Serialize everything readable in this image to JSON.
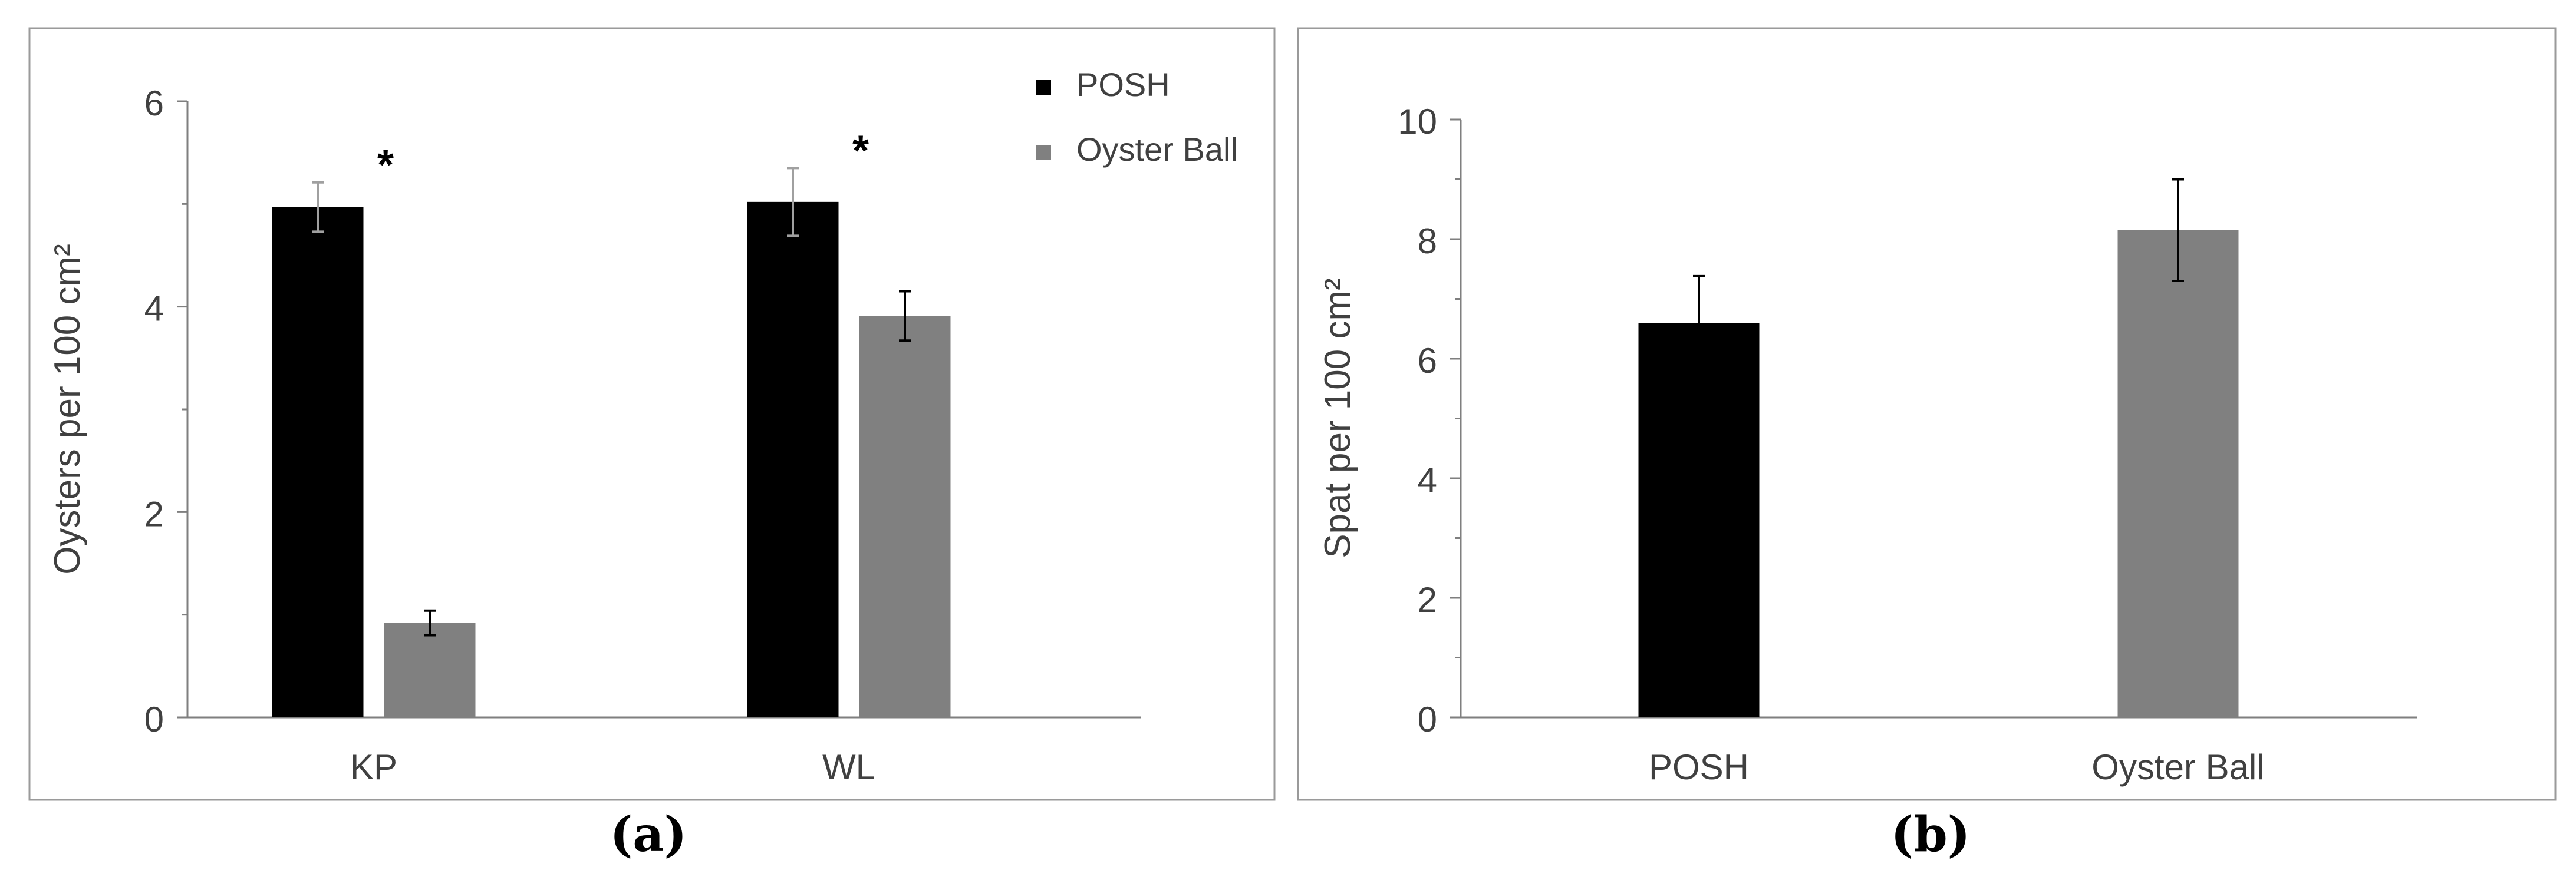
{
  "panels": [
    {
      "id": "a",
      "caption": "(a)",
      "chart_data": {
        "type": "bar",
        "categories": [
          "KP",
          "WL"
        ],
        "series": [
          {
            "name": "POSH",
            "color": "#000000",
            "values": [
              4.97,
              5.02
            ],
            "errors": [
              0.24,
              0.33
            ]
          },
          {
            "name": "Oyster Ball",
            "color": "#808080",
            "values": [
              0.92,
              3.91
            ],
            "errors": [
              0.12,
              0.24
            ]
          }
        ],
        "annotations": [
          "*",
          "*"
        ],
        "title": "",
        "xlabel": "",
        "ylabel": "Oysters per 100 cm²",
        "ylim": [
          0,
          6
        ],
        "yticks": [
          "0",
          "2",
          "4",
          "6"
        ],
        "grid": false,
        "legend": "top-right"
      }
    },
    {
      "id": "b",
      "caption": "(b)",
      "chart_data": {
        "type": "bar",
        "categories": [
          "POSH",
          "Oyster Ball"
        ],
        "values": [
          6.6,
          8.15
        ],
        "errors": [
          0.78,
          0.85
        ],
        "colors": [
          "#000000",
          "#808080"
        ],
        "title": "",
        "xlabel": "",
        "ylabel": "Spat per 100 cm²",
        "ylim": [
          0,
          10
        ],
        "yticks": [
          "0",
          "2",
          "4",
          "6",
          "8",
          "10"
        ],
        "grid": false
      }
    }
  ]
}
